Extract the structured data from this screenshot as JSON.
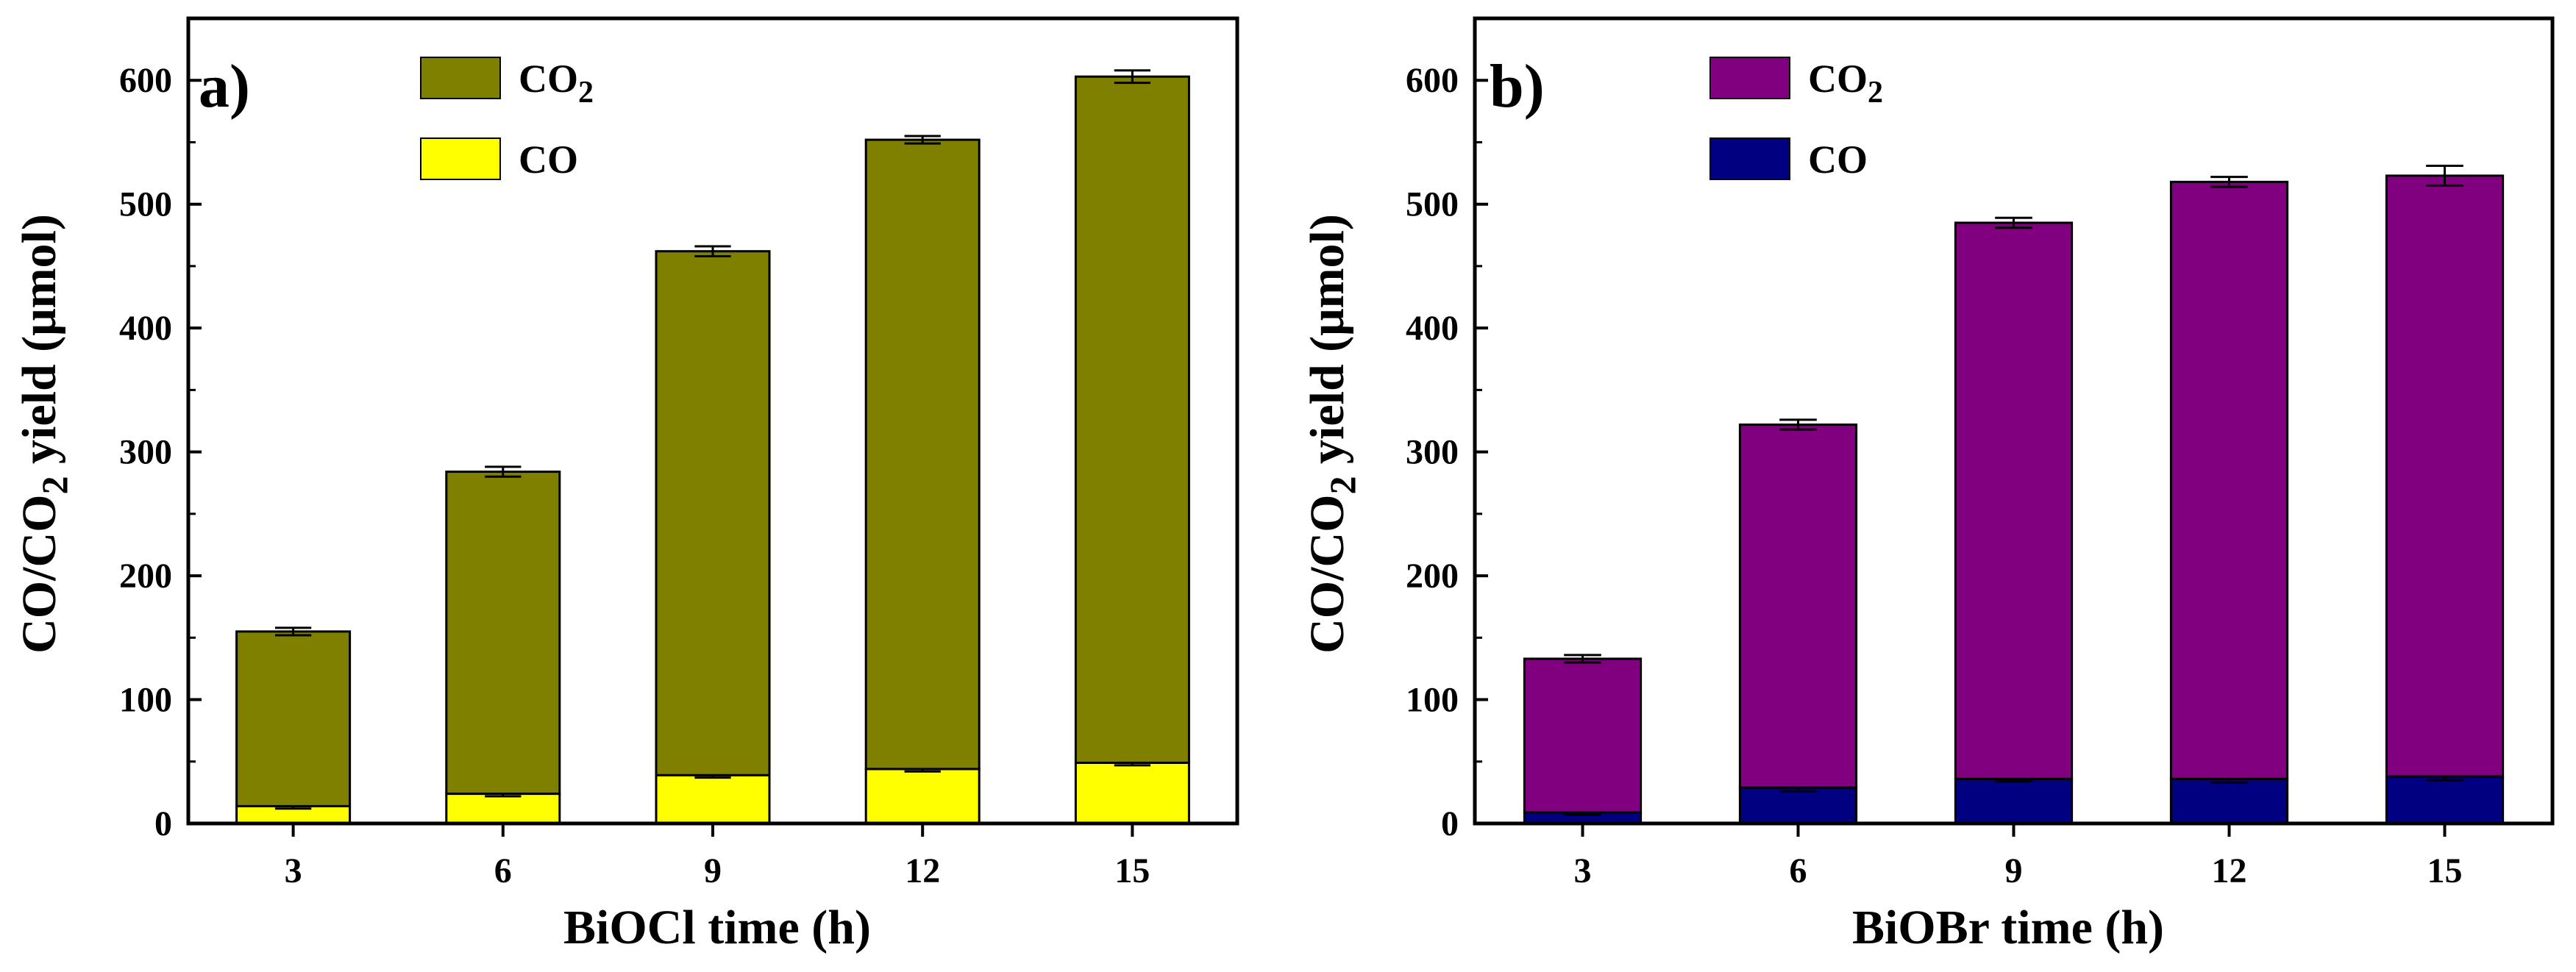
{
  "chart_data": [
    {
      "type": "bar",
      "stacked": true,
      "panel_label": "a)",
      "title": "",
      "categories": [
        "3",
        "6",
        "9",
        "12",
        "15"
      ],
      "series": [
        {
          "name": "CO",
          "color": "#FFFF00",
          "values": [
            14,
            24,
            39,
            44,
            49
          ],
          "error": [
            2,
            2,
            2,
            2,
            2
          ]
        },
        {
          "name": "CO2",
          "color": "#808000",
          "values": [
            141,
            260,
            423,
            508,
            554
          ],
          "error": [
            3,
            4,
            4,
            3,
            5
          ]
        }
      ],
      "totals": [
        155,
        284,
        462,
        552,
        603
      ],
      "xlabel": "BiOCl time (h)",
      "ylabel": {
        "main": "CO/CO",
        "sub": "2",
        "tail": " yield (μmol)"
      },
      "ylim": [
        0,
        650
      ],
      "yticks": [
        "0",
        "100",
        "200",
        "300",
        "400",
        "500",
        "600"
      ],
      "legend": [
        {
          "label": "CO",
          "sub": "2",
          "color": "#808000"
        },
        {
          "label": "CO",
          "sub": "",
          "color": "#FFFF00"
        }
      ],
      "legend_position": "top-center"
    },
    {
      "type": "bar",
      "stacked": true,
      "panel_label": "b)",
      "title": "",
      "categories": [
        "3",
        "6",
        "9",
        "12",
        "15"
      ],
      "series": [
        {
          "name": "CO",
          "color": "#000080",
          "values": [
            9,
            29,
            36,
            36,
            38
          ],
          "error": [
            2,
            3,
            2,
            3,
            3
          ]
        },
        {
          "name": "CO2",
          "color": "#800080",
          "values": [
            124,
            293,
            449,
            482,
            485
          ],
          "error": [
            3,
            4,
            4,
            4,
            8
          ]
        }
      ],
      "totals": [
        133,
        322,
        485,
        518,
        523
      ],
      "xlabel": "BiOBr time (h)",
      "ylabel": {
        "main": "CO/CO",
        "sub": "2",
        "tail": " yield (μmol)"
      },
      "ylim": [
        0,
        650
      ],
      "yticks": [
        "0",
        "100",
        "200",
        "300",
        "400",
        "500",
        "600"
      ],
      "legend": [
        {
          "label": "CO",
          "sub": "2",
          "color": "#800080"
        },
        {
          "label": "CO",
          "sub": "",
          "color": "#000080"
        }
      ],
      "legend_position": "top-center"
    }
  ]
}
